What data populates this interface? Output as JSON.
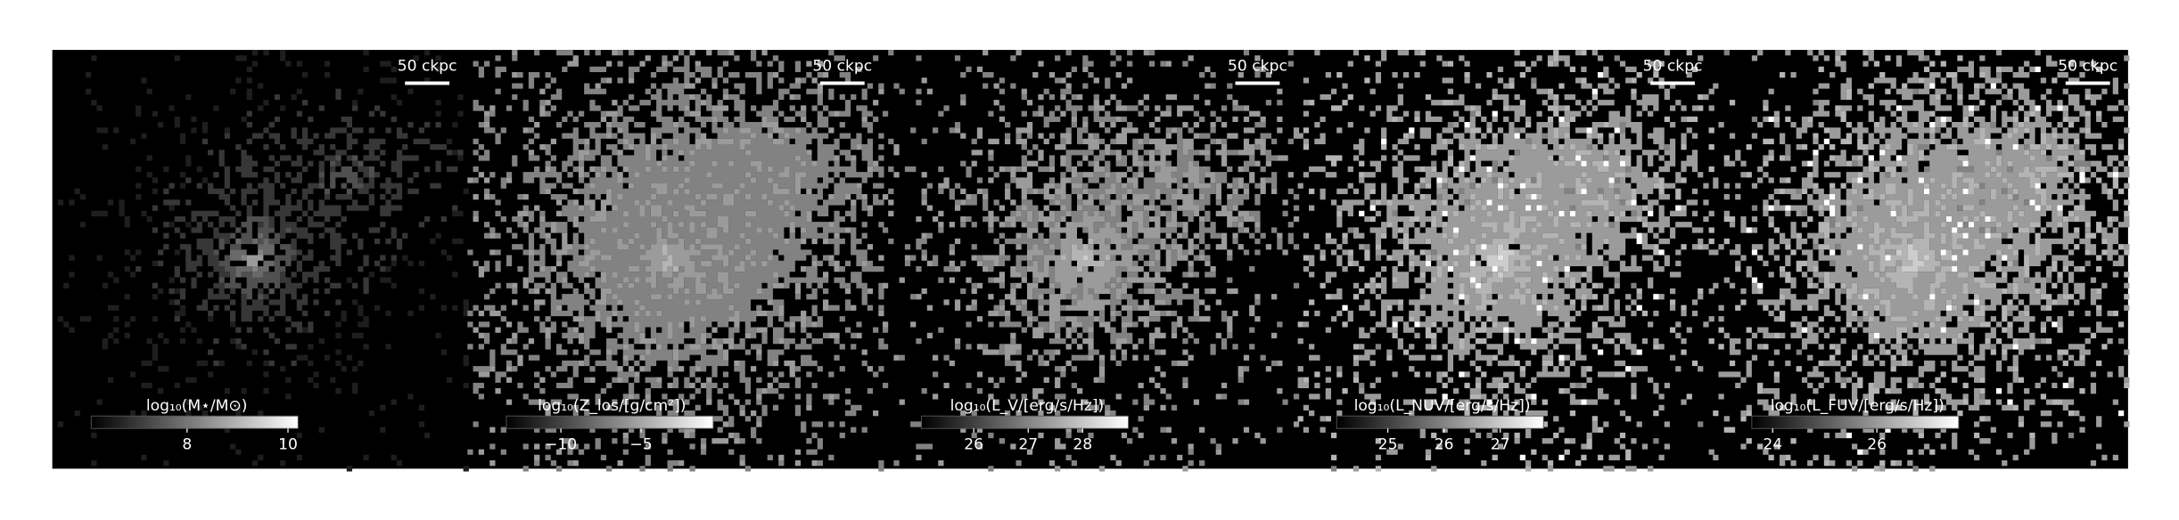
{
  "panels": [
    {
      "scale_bar": "50 ckpc",
      "colorbar": {
        "label": "log₁₀(M⋆/M⊙)",
        "lim": [
          6.1,
          10.2
        ],
        "ticks": [
          8,
          10
        ]
      }
    },
    {
      "scale_bar": "50 ckpc",
      "colorbar": {
        "label": "log₁₀(Z_los/[g/cm²])",
        "lim": [
          -13.4,
          -0.5
        ],
        "ticks": [
          {
            "value": -10,
            "label": "−10"
          },
          {
            "value": -5,
            "label": "−5"
          }
        ]
      }
    },
    {
      "scale_bar": "50 ckpc",
      "colorbar": {
        "label": "log₁₀(L_V/[erg/s/Hz])",
        "lim": [
          25.04,
          28.84
        ],
        "ticks": [
          26,
          27,
          28
        ]
      }
    },
    {
      "scale_bar": "50 ckpc",
      "colorbar": {
        "label": "log₁₀(L_NUV/[erg/s/Hz])",
        "lim": [
          24.09,
          27.77
        ],
        "ticks": [
          25,
          26,
          27
        ]
      }
    },
    {
      "scale_bar": "50 ckpc",
      "colorbar": {
        "label": "log₁₀(L_FUV/[erg/s/Hz])",
        "lim": [
          23.6,
          27.57
        ],
        "ticks": [
          24,
          26
        ]
      }
    }
  ]
}
